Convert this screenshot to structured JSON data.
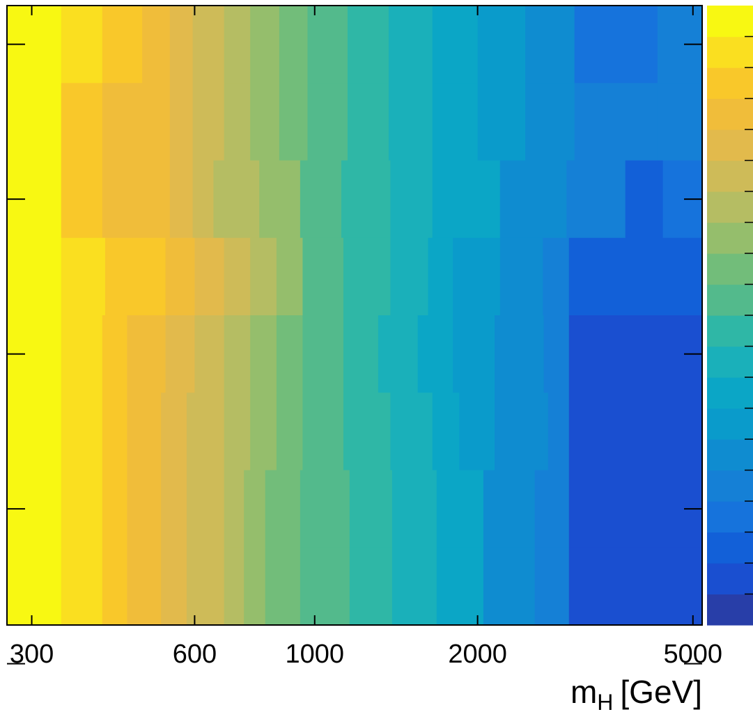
{
  "chart_data": {
    "type": "heatmap",
    "title": "",
    "xlabel": "m",
    "xlabel_sub": "H",
    "xlabel_unit": "[GeV]",
    "x_scale": "log",
    "xlim": [
      270,
      5200
    ],
    "x_ticks": [
      300,
      600,
      1000,
      2000,
      5000
    ],
    "x_tick_labels": [
      "300",
      "600",
      "1000",
      "2000",
      "5000"
    ],
    "y_tick_count": 5,
    "colorbar_colors": [
      "#283ea8",
      "#1a4fd0",
      "#1260d8",
      "#1673dc",
      "#1580d6",
      "#0f8cd0",
      "#0a9bcb",
      "#0ba6c6",
      "#1ab0ba",
      "#2fb7a6",
      "#53ba8c",
      "#72bd7a",
      "#95be6c",
      "#b5bd63",
      "#cebb58",
      "#e2ba4c",
      "#f0bd3a",
      "#f9c82a",
      "#fadf20",
      "#f8f812"
    ],
    "rows": [
      {
        "x_edges": [
          270,
          340,
          405,
          480,
          540,
          595,
          680,
          760,
          860,
          970,
          1150,
          1370,
          1650,
          2000,
          2450,
          3020,
          4300,
          5200
        ],
        "levels": [
          19,
          18,
          17,
          16,
          15,
          14,
          13,
          12,
          11,
          10,
          9,
          8,
          7,
          6,
          5,
          3,
          4
        ]
      },
      {
        "x_edges": [
          270,
          340,
          405,
          480,
          540,
          595,
          680,
          760,
          860,
          970,
          1150,
          1370,
          1650,
          2000,
          2450,
          3020,
          4300,
          5200
        ],
        "levels": [
          19,
          17,
          16,
          16,
          15,
          14,
          13,
          12,
          11,
          10,
          9,
          8,
          7,
          6,
          5,
          4,
          4
        ]
      },
      {
        "x_edges": [
          270,
          340,
          405,
          480,
          540,
          595,
          650,
          700,
          790,
          940,
          1120,
          1380,
          1650,
          2200,
          2920,
          3750,
          4400,
          5200
        ],
        "levels": [
          19,
          17,
          16,
          16,
          15,
          14,
          13,
          13,
          12,
          10,
          9,
          8,
          7,
          5,
          4,
          2,
          3
        ]
      },
      {
        "x_edges": [
          270,
          340,
          410,
          460,
          530,
          600,
          680,
          760,
          850,
          950,
          1130,
          1380,
          1620,
          1800,
          2200,
          2640,
          2950,
          5200
        ],
        "levels": [
          19,
          18,
          17,
          17,
          16,
          15,
          14,
          13,
          12,
          10,
          9,
          8,
          7,
          6,
          5,
          4,
          2
        ]
      },
      {
        "x_edges": [
          270,
          340,
          405,
          450,
          530,
          600,
          680,
          760,
          850,
          950,
          1130,
          1310,
          1550,
          1800,
          2150,
          2650,
          2950,
          5200
        ],
        "levels": [
          19,
          18,
          17,
          16,
          15,
          14,
          13,
          12,
          11,
          10,
          9,
          8,
          7,
          6,
          5,
          4,
          1
        ]
      },
      {
        "x_edges": [
          270,
          340,
          405,
          450,
          520,
          580,
          680,
          760,
          850,
          950,
          1130,
          1380,
          1650,
          1850,
          2150,
          2700,
          2950,
          5200
        ],
        "levels": [
          19,
          18,
          17,
          16,
          15,
          14,
          13,
          12,
          11,
          10,
          9,
          8,
          7,
          6,
          5,
          4,
          1
        ]
      },
      {
        "x_edges": [
          270,
          340,
          405,
          450,
          520,
          580,
          680,
          740,
          810,
          940,
          1160,
          1390,
          1680,
          2050,
          2550,
          2950,
          5200
        ],
        "levels": [
          19,
          18,
          17,
          16,
          15,
          14,
          13,
          12,
          11,
          10,
          9,
          8,
          7,
          5,
          4,
          1
        ]
      },
      {
        "x_edges": [
          270,
          340,
          405,
          450,
          520,
          580,
          680,
          740,
          810,
          940,
          1160,
          1390,
          1680,
          2050,
          2550,
          2950,
          5200
        ],
        "levels": [
          19,
          18,
          17,
          16,
          15,
          14,
          13,
          12,
          11,
          10,
          9,
          8,
          7,
          5,
          4,
          1
        ]
      }
    ]
  }
}
